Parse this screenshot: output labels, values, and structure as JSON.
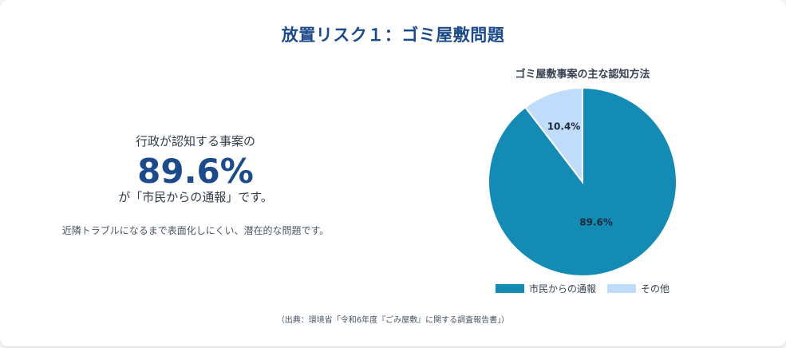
{
  "title": "放置リスク１：ゴミ屋敷問題",
  "summary": {
    "lead": "行政が認知する事案の",
    "highlight": "89.6%",
    "tail": "が「市民からの通報」です。",
    "note": "近隣トラブルになるまで表面化しにくい、潜在的な問題です。"
  },
  "colors": {
    "title": "#1d4a8a",
    "primary_slice": "#138bb5",
    "secondary_slice": "#bfdcfb"
  },
  "chart_data": {
    "type": "pie",
    "title": "ゴミ屋敷事案の主な認知方法",
    "labels": [
      "市民からの通報",
      "その他"
    ],
    "values": [
      89.6,
      10.4
    ],
    "data_labels": [
      "89.6%",
      "10.4%"
    ],
    "colors": [
      "#138bb5",
      "#bfdcfb"
    ],
    "legend_position": "bottom"
  },
  "source": "（出典：環境省「令和6年度『ごみ屋敷』に関する調査報告書」）"
}
